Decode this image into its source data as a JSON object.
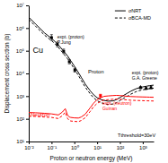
{
  "chart_data": {
    "type": "line",
    "xlabel": "Proton or neutron energy (MeV)",
    "ylabel": "Displacement cross section (b)",
    "log": true,
    "grid": false,
    "legend": "upper right",
    "xlim": [
      0.01,
      3000
    ],
    "ylim": [
      10,
      10000000
    ],
    "xticks": [
      {
        "value": 0.01,
        "label": "10⁻²"
      },
      {
        "value": 0.1,
        "label": "10⁻¹"
      },
      {
        "value": 1,
        "label": "10⁰"
      },
      {
        "value": 10,
        "label": "10¹"
      },
      {
        "value": 100,
        "label": "10²"
      },
      {
        "value": 1000,
        "label": "10³"
      }
    ],
    "yticks": [
      {
        "value": 10,
        "label": "10¹"
      },
      {
        "value": 100,
        "label": "10²"
      },
      {
        "value": 1000,
        "label": "10³"
      },
      {
        "value": 10000,
        "label": "10⁴"
      },
      {
        "value": 100000,
        "label": "10⁵"
      },
      {
        "value": 1000000,
        "label": "10⁶"
      },
      {
        "value": 10000000,
        "label": "10⁷"
      }
    ],
    "series": [
      {
        "name": "σNRT",
        "type": "line",
        "color": "black",
        "line_style": "solid",
        "x": [
          0.01,
          0.02,
          0.05,
          0.1,
          0.15,
          0.2,
          0.3,
          0.5,
          0.7,
          1.0,
          1.5,
          2.0,
          3.0,
          5.0,
          7.0,
          10.0,
          15.0,
          20.0,
          30.0,
          50.0,
          70.0,
          100.0,
          150.0,
          200.0,
          300.0,
          500.0,
          700.0,
          1000.0,
          1500.0,
          2000.0,
          3000.0
        ],
        "values": [
          3000000,
          1500000,
          600000,
          350000,
          240000,
          180000,
          110000,
          60000,
          36000,
          21000,
          11000,
          6800,
          3400,
          1700,
          1150,
          850,
          700,
          650,
          600,
          620,
          700,
          870,
          1100,
          1300,
          1650,
          2100,
          2350,
          2550,
          2750,
          2900,
          3050
        ]
      },
      {
        "name": "σBCA-MD",
        "type": "line",
        "color": "black",
        "line_style": "dashed",
        "x": [
          0.01,
          0.02,
          0.05,
          0.1,
          0.15,
          0.2,
          0.3,
          0.5,
          0.7,
          1.0,
          1.5,
          2.0,
          3.0,
          5.0,
          7.0,
          10.0,
          15.0,
          20.0,
          30.0,
          50.0,
          70.0,
          100.0,
          150.0,
          200.0,
          300.0,
          500.0,
          700.0,
          1000.0,
          1500.0,
          2000.0,
          3000.0
        ],
        "values": [
          2400000,
          1200000,
          480000,
          280000,
          190000,
          140000,
          85000,
          45000,
          27000,
          16000,
          8200,
          5000,
          2500,
          1250,
          850,
          630,
          510,
          470,
          430,
          450,
          510,
          640,
          820,
          960,
          1220,
          1560,
          1750,
          1900,
          2050,
          2150,
          2250
        ]
      },
      {
        "type": "line",
        "color": "red",
        "line_style": "solid",
        "x": [
          0.01,
          0.02,
          0.05,
          0.1,
          0.15,
          0.2,
          0.3,
          0.4,
          0.5,
          0.6,
          0.7,
          1.0,
          1.5,
          2.0,
          3.0,
          5.0,
          7.0,
          10.0,
          15.0,
          20.0,
          30.0,
          50.0,
          70.0,
          100.0,
          150.0,
          200.0,
          300.0,
          500.0,
          700.0,
          1000.0,
          1500.0,
          2000.0,
          3000.0
        ],
        "values": [
          190,
          185,
          175,
          165,
          155,
          148,
          200,
          280,
          150,
          120,
          115,
          110,
          108,
          120,
          160,
          310,
          490,
          700,
          870,
          980,
          1020,
          1060,
          1080,
          1060,
          1020,
          990,
          960,
          940,
          930,
          920,
          910,
          900,
          890
        ]
      },
      {
        "type": "line",
        "color": "red",
        "line_style": "dashed",
        "x": [
          0.01,
          0.02,
          0.05,
          0.1,
          0.15,
          0.2,
          0.3,
          0.4,
          0.5,
          0.6,
          0.7,
          1.0,
          1.5,
          2.0,
          3.0,
          5.0,
          7.0,
          10.0,
          15.0,
          20.0,
          30.0,
          50.0,
          70.0,
          100.0,
          150.0,
          200.0,
          300.0,
          500.0,
          700.0,
          1000.0,
          1500.0,
          2000.0,
          3000.0
        ],
        "values": [
          130,
          128,
          120,
          115,
          108,
          103,
          138,
          195,
          105,
          84,
          80,
          77,
          75,
          84,
          112,
          215,
          340,
          480,
          600,
          675,
          700,
          730,
          745,
          730,
          700,
          680,
          660,
          645,
          638,
          630,
          622,
          616,
          610
        ]
      },
      {
        "type": "scatter",
        "color": "black",
        "marker": "square",
        "x": [
          0.1,
          0.18,
          0.34,
          0.6,
          1.05
        ],
        "values": [
          380000,
          190000,
          95000,
          33000,
          14000
        ],
        "error_low": [
          95000,
          41800,
          19000,
          6600,
          2520
        ],
        "error_high": [
          133000,
          53200,
          23750,
          8250,
          3080
        ]
      },
      {
        "type": "scatter",
        "color": "red",
        "marker": "square",
        "x": [
          14.0
        ],
        "values": [
          1050
        ],
        "error": [
          157.5
        ]
      },
      {
        "type": "scatter",
        "color": "black",
        "marker": "triangle",
        "x": [
          800,
          1400,
          2300
        ],
        "values": [
          2400,
          2200,
          2350
        ],
        "error": [
          288,
          264,
          282
        ]
      }
    ],
    "annotations": [
      {
        "text": "expt. (proton)\nP.Jung",
        "color": "black"
      },
      {
        "text": "Proton",
        "color": "black"
      },
      {
        "text": "Cu",
        "color": "black"
      },
      {
        "text": "Neutron",
        "color": "red"
      },
      {
        "text": "expt. (neutron)\nGuinan",
        "color": "red"
      },
      {
        "text": "expt. (proton)\nG.A. Greene",
        "color": "black"
      },
      {
        "text": "Tthreshold=30eV",
        "color": "black"
      }
    ]
  }
}
